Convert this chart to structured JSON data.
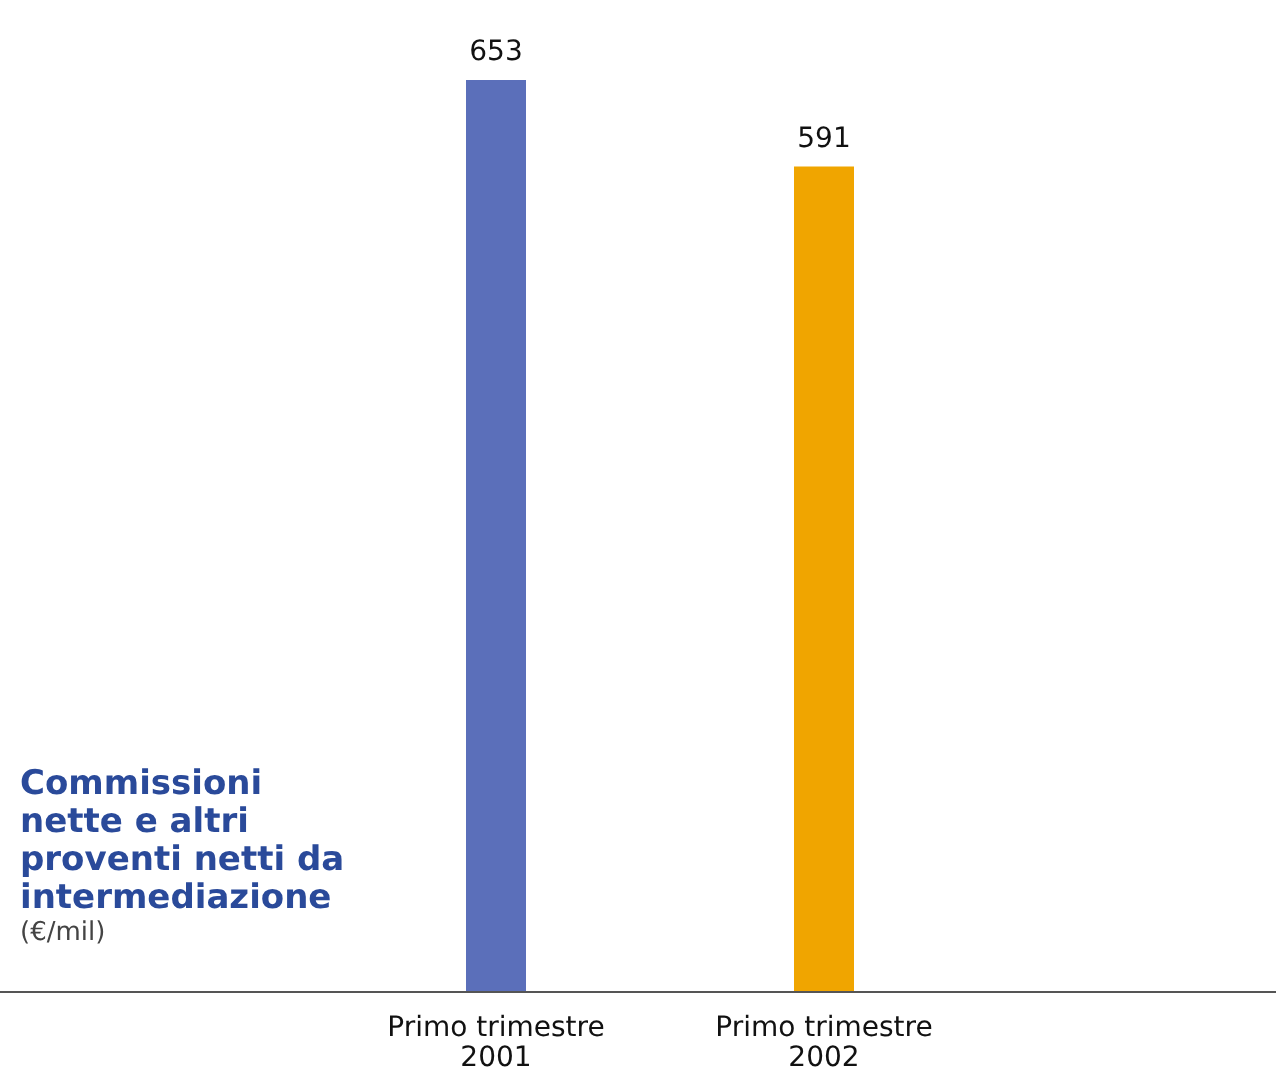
{
  "chart_data": {
    "type": "bar",
    "title": "Commissioni nette e altri proventi netti da intermediazione",
    "subtitle": "(€/mil)",
    "categories": [
      "Primo trimestre 2001",
      "Primo trimestre 2002"
    ],
    "values": [
      653,
      591
    ],
    "colors": [
      "#5b6fba",
      "#f0a500"
    ],
    "data_labels": true
  }
}
